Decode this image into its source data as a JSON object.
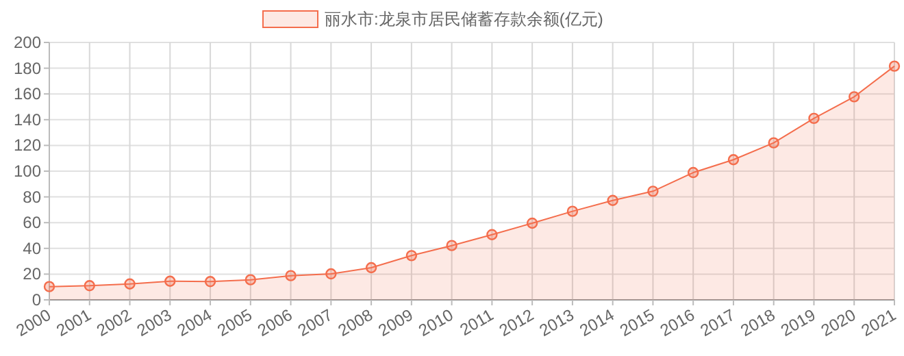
{
  "chart_data": {
    "type": "area",
    "categories": [
      "2000",
      "2001",
      "2002",
      "2003",
      "2004",
      "2005",
      "2006",
      "2007",
      "2008",
      "2009",
      "2010",
      "2011",
      "2012",
      "2013",
      "2014",
      "2015",
      "2016",
      "2017",
      "2018",
      "2019",
      "2020",
      "2021"
    ],
    "series": [
      {
        "name": "丽水市:龙泉市居民储蓄存款余额(亿元)",
        "color": "#f46d4c",
        "values": [
          10.3,
          11,
          12.4,
          14.5,
          14.2,
          15.6,
          18.8,
          20.2,
          25,
          34.4,
          42.2,
          50.7,
          59.6,
          68.8,
          77.3,
          84.4,
          98.9,
          108.9,
          122,
          141,
          157.8,
          181.6
        ]
      }
    ],
    "ylim": [
      0,
      200
    ],
    "yticks": [
      0,
      20,
      40,
      60,
      80,
      100,
      120,
      140,
      160,
      180,
      200
    ],
    "grid": true,
    "legend": "top",
    "marker": "circle"
  }
}
